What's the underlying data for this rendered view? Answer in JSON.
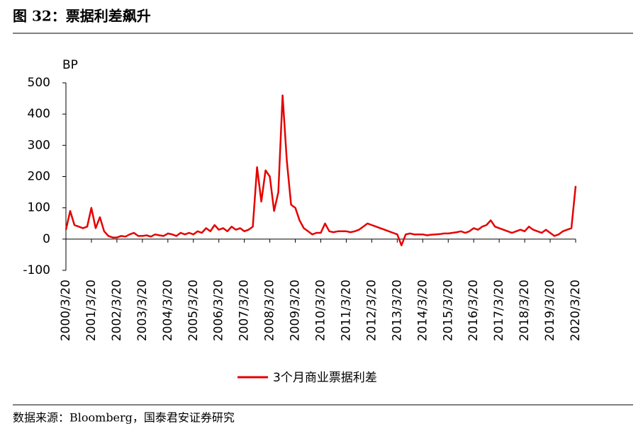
{
  "chart_data": {
    "type": "line",
    "title": "图 32：票据利差飙升",
    "y_label": "BP",
    "source": "数据来源：Bloomberg，国泰君安证券研究",
    "categories": [
      "2000/3/20",
      null,
      null,
      null,
      null,
      null,
      "2001/3/20",
      null,
      null,
      null,
      null,
      null,
      "2002/3/20",
      null,
      null,
      null,
      null,
      null,
      "2003/3/20",
      null,
      null,
      null,
      null,
      null,
      "2004/3/20",
      null,
      null,
      null,
      null,
      null,
      "2005/3/20",
      null,
      null,
      null,
      null,
      null,
      "2006/3/20",
      null,
      null,
      null,
      null,
      null,
      "2007/3/20",
      null,
      null,
      null,
      null,
      null,
      "2008/3/20",
      null,
      null,
      null,
      null,
      null,
      "2009/3/20",
      null,
      null,
      null,
      null,
      null,
      "2010/3/20",
      null,
      null,
      null,
      null,
      null,
      "2011/3/20",
      null,
      null,
      null,
      null,
      null,
      "2012/3/20",
      null,
      null,
      null,
      null,
      null,
      "2013/3/20",
      null,
      null,
      null,
      null,
      null,
      "2014/3/20",
      null,
      null,
      null,
      null,
      null,
      "2015/3/20",
      null,
      null,
      null,
      null,
      null,
      "2016/3/20",
      null,
      null,
      null,
      null,
      null,
      "2017/3/20",
      null,
      null,
      null,
      null,
      null,
      "2018/3/20",
      null,
      null,
      null,
      null,
      null,
      "2019/3/20",
      null,
      null,
      null,
      null,
      null,
      "2020/3/20"
    ],
    "series": [
      {
        "name": "3个月商业票据利差",
        "color": "#e60000",
        "values": [
          30,
          90,
          45,
          40,
          35,
          40,
          100,
          35,
          70,
          25,
          10,
          5,
          5,
          10,
          8,
          15,
          20,
          10,
          10,
          12,
          8,
          15,
          12,
          10,
          18,
          15,
          10,
          20,
          15,
          20,
          15,
          25,
          20,
          35,
          25,
          45,
          30,
          35,
          25,
          40,
          30,
          35,
          25,
          30,
          40,
          230,
          120,
          220,
          200,
          90,
          150,
          460,
          250,
          110,
          100,
          60,
          35,
          25,
          15,
          20,
          20,
          50,
          25,
          22,
          25,
          25,
          25,
          22,
          25,
          30,
          40,
          50,
          45,
          40,
          35,
          30,
          25,
          20,
          15,
          -20,
          15,
          18,
          15,
          15,
          15,
          12,
          14,
          15,
          16,
          18,
          18,
          20,
          22,
          25,
          20,
          25,
          35,
          30,
          40,
          45,
          60,
          40,
          35,
          30,
          25,
          20,
          25,
          30,
          25,
          40,
          30,
          25,
          20,
          30,
          20,
          10,
          15,
          25,
          30,
          35,
          170
        ]
      }
    ],
    "ylim": [
      -100,
      500
    ],
    "yticks": [
      -100,
      0,
      100,
      200,
      300,
      400,
      500
    ],
    "legend": "bottom"
  }
}
